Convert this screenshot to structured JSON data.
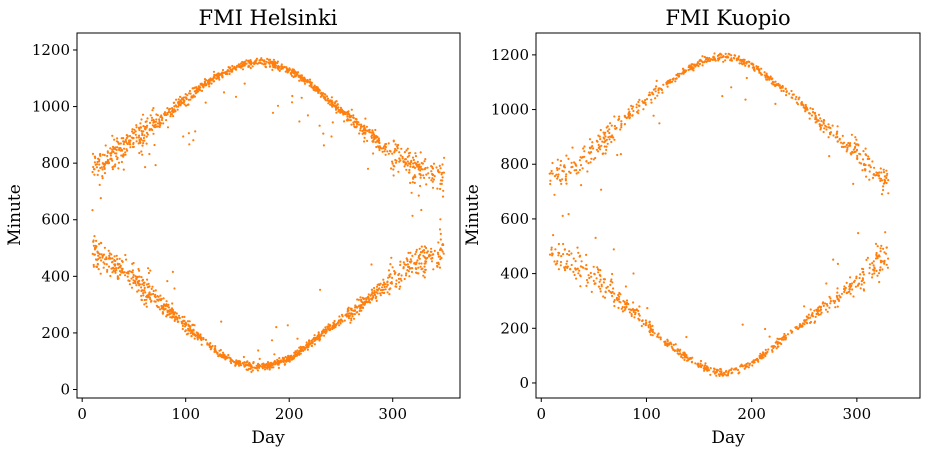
{
  "chart_data": [
    {
      "type": "scatter",
      "title": "FMI Helsinki",
      "xlabel": "Day",
      "ylabel": "Minute",
      "xlim": [
        -5,
        365
      ],
      "ylim": [
        -30,
        1260
      ],
      "xticks": [
        0,
        100,
        200,
        300
      ],
      "yticks": [
        0,
        200,
        400,
        600,
        800,
        1000,
        1200
      ],
      "xtick_labels": [
        "0",
        "100",
        "200",
        "300"
      ],
      "ytick_labels": [
        "0",
        "200",
        "400",
        "600",
        "800",
        "1000",
        "1200"
      ],
      "grid": false,
      "marker_color": "#ff7f0e",
      "x_range": [
        10,
        350
      ],
      "series": [
        {
          "x": [
            10,
            20,
            30,
            40,
            50,
            60,
            70,
            80,
            90,
            100,
            110,
            120,
            130,
            140,
            150,
            160,
            172,
            180,
            190,
            200,
            210,
            220,
            230,
            240,
            250,
            260,
            270,
            280,
            290,
            300,
            310,
            320,
            330,
            340,
            350
          ],
          "y": [
            790,
            805,
            830,
            860,
            890,
            920,
            945,
            970,
            1000,
            1025,
            1055,
            1080,
            1105,
            1125,
            1140,
            1152,
            1158,
            1155,
            1145,
            1130,
            1105,
            1080,
            1050,
            1015,
            985,
            955,
            925,
            895,
            860,
            830,
            810,
            790,
            775,
            765,
            760
          ]
        },
        {
          "x": [
            10,
            20,
            30,
            40,
            50,
            60,
            70,
            80,
            90,
            100,
            110,
            120,
            130,
            140,
            150,
            160,
            172,
            180,
            190,
            200,
            210,
            220,
            230,
            240,
            250,
            260,
            270,
            280,
            290,
            300,
            310,
            320,
            330,
            340,
            350
          ],
          "y": [
            480,
            465,
            440,
            420,
            395,
            360,
            325,
            290,
            260,
            230,
            195,
            165,
            135,
            110,
            95,
            85,
            80,
            85,
            95,
            110,
            135,
            160,
            190,
            220,
            245,
            270,
            300,
            330,
            360,
            395,
            420,
            445,
            460,
            475,
            480
          ]
        }
      ]
    },
    {
      "type": "scatter",
      "title": "FMI Kuopio",
      "xlabel": "Day",
      "ylabel": "Minute",
      "xlim": [
        -5,
        360
      ],
      "ylim": [
        -55,
        1280
      ],
      "xticks": [
        0,
        100,
        200,
        300
      ],
      "yticks": [
        0,
        200,
        400,
        600,
        800,
        1000,
        1200
      ],
      "xtick_labels": [
        "0",
        "100",
        "200",
        "300"
      ],
      "ytick_labels": [
        "0",
        "200",
        "400",
        "600",
        "800",
        "1000",
        "1200"
      ],
      "grid": false,
      "marker_color": "#ff7f0e",
      "x_range": [
        8,
        345
      ],
      "series": [
        {
          "x": [
            10,
            20,
            30,
            40,
            50,
            60,
            70,
            80,
            90,
            100,
            110,
            120,
            130,
            140,
            150,
            160,
            172,
            180,
            190,
            200,
            210,
            220,
            230,
            240,
            250,
            260,
            270,
            280,
            290,
            300,
            310,
            320,
            330
          ],
          "y": [
            760,
            770,
            790,
            820,
            855,
            890,
            930,
            965,
            1000,
            1035,
            1065,
            1095,
            1125,
            1150,
            1170,
            1185,
            1195,
            1190,
            1180,
            1160,
            1135,
            1105,
            1075,
            1045,
            1010,
            975,
            940,
            905,
            870,
            835,
            800,
            765,
            740
          ]
        },
        {
          "x": [
            10,
            20,
            30,
            40,
            50,
            60,
            70,
            80,
            90,
            100,
            110,
            120,
            130,
            140,
            150,
            160,
            172,
            180,
            190,
            200,
            210,
            220,
            230,
            240,
            250,
            260,
            270,
            280,
            290,
            300,
            310,
            320,
            330
          ],
          "y": [
            470,
            455,
            435,
            410,
            385,
            355,
            320,
            285,
            250,
            215,
            180,
            145,
            115,
            90,
            65,
            45,
            35,
            40,
            55,
            75,
            100,
            130,
            160,
            190,
            220,
            250,
            280,
            310,
            340,
            375,
            410,
            440,
            465
          ]
        }
      ]
    }
  ]
}
